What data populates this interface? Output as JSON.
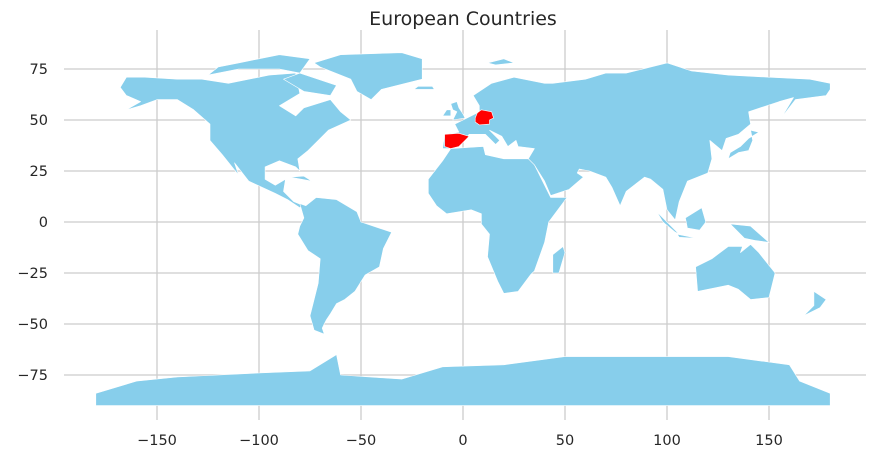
{
  "chart_data": {
    "type": "map",
    "title": "European Countries",
    "xlabel": "",
    "ylabel": "",
    "xlim": [
      -195,
      195
    ],
    "ylim": [
      -97,
      94
    ],
    "x_ticks": [
      -150,
      -100,
      -50,
      0,
      50,
      100,
      150
    ],
    "x_tick_labels": [
      "−150",
      "−100",
      "−50",
      "0",
      "50",
      "100",
      "150"
    ],
    "y_ticks": [
      75,
      50,
      25,
      0,
      -25,
      -50,
      -75
    ],
    "y_tick_labels": [
      "75",
      "50",
      "25",
      "0",
      "−25",
      "−50",
      "−75"
    ],
    "grid": true,
    "base_color": "#87CEEB",
    "highlight_color": "#FF0000",
    "highlighted_countries": [
      "Germany",
      "Spain"
    ],
    "grid_color": "#CCCCCC"
  }
}
